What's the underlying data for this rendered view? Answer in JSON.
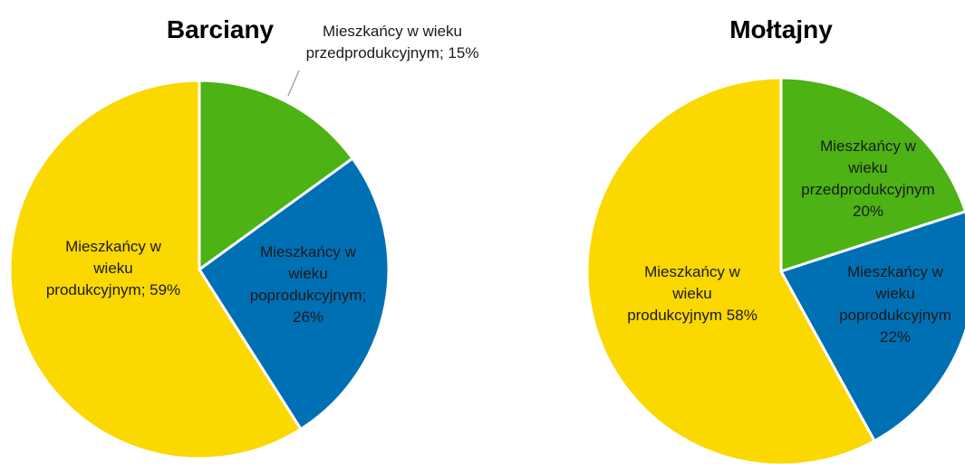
{
  "chart_data": [
    {
      "type": "pie",
      "title": "Barciany",
      "values": [
        15,
        26,
        59
      ],
      "value_labels": [
        "Mieszkańcy w wieku przedprodukcyjnym; 15%",
        "Mieszkańcy w wieku poprodukcyjnym; 26%",
        "Mieszkańcy w wieku produkcyjnym; 59%"
      ],
      "colors": [
        "#4db214",
        "#0070b4",
        "#fad800"
      ]
    },
    {
      "type": "pie",
      "title": "Mołtajny",
      "values": [
        20,
        22,
        58
      ],
      "value_labels": [
        "Mieszkańcy w wieku przedprodukcyjnym 20%",
        "Mieszkańcy w wieku poprodukcyjnym 22%",
        "Mieszkańcy w wieku produkcyjnym 58%"
      ],
      "colors": [
        "#4db214",
        "#0070b4",
        "#fad800"
      ]
    }
  ]
}
